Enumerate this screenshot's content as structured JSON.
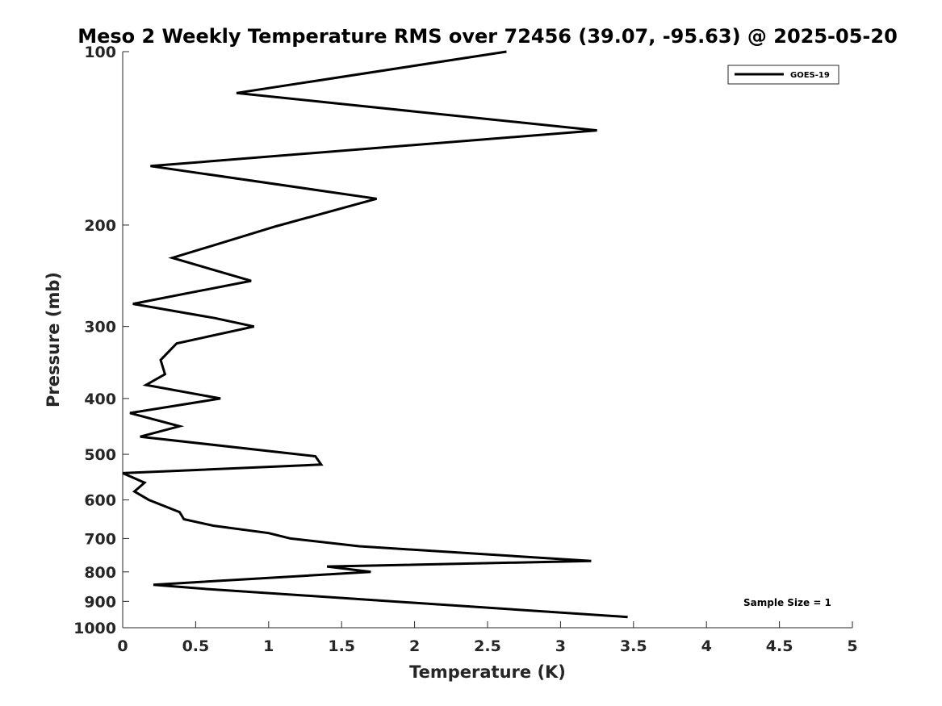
{
  "chart_data": {
    "type": "line",
    "title": "Meso 2 Weekly Temperature RMS over 72456 (39.07, -95.63) @ 2025-05-20",
    "xlabel": "Temperature (K)",
    "ylabel": "Pressure (mb)",
    "xlim": [
      0,
      5
    ],
    "ylim": [
      100,
      1000
    ],
    "y_scale": "log",
    "y_reversed": true,
    "x_ticks": [
      0,
      0.5,
      1,
      1.5,
      2,
      2.5,
      3,
      3.5,
      4,
      4.5,
      5
    ],
    "x_tick_labels": [
      "0",
      "0.5",
      "1",
      "1.5",
      "2",
      "2.5",
      "3",
      "3.5",
      "4",
      "4.5",
      "5"
    ],
    "y_ticks": [
      100,
      200,
      300,
      400,
      500,
      600,
      700,
      800,
      900,
      1000
    ],
    "y_tick_labels": [
      "100",
      "200",
      "300",
      "400",
      "500",
      "600",
      "700",
      "800",
      "900",
      "1000"
    ],
    "grid": false,
    "legend_position": "top-right",
    "annotation": "Sample Size = 1",
    "series": [
      {
        "name": "GOES-19",
        "color": "#000000",
        "points": [
          {
            "t": 2.63,
            "p": 100
          },
          {
            "t": 0.78,
            "p": 118
          },
          {
            "t": 3.25,
            "p": 137
          },
          {
            "t": 0.19,
            "p": 158
          },
          {
            "t": 1.74,
            "p": 180
          },
          {
            "t": 1.05,
            "p": 201
          },
          {
            "t": 0.34,
            "p": 228
          },
          {
            "t": 0.88,
            "p": 250
          },
          {
            "t": 0.07,
            "p": 274
          },
          {
            "t": 0.63,
            "p": 290
          },
          {
            "t": 0.9,
            "p": 300
          },
          {
            "t": 0.37,
            "p": 321
          },
          {
            "t": 0.26,
            "p": 343
          },
          {
            "t": 0.29,
            "p": 363
          },
          {
            "t": 0.16,
            "p": 379
          },
          {
            "t": 0.67,
            "p": 400
          },
          {
            "t": 0.05,
            "p": 424
          },
          {
            "t": 0.39,
            "p": 447
          },
          {
            "t": 0.12,
            "p": 466
          },
          {
            "t": 1.32,
            "p": 504
          },
          {
            "t": 1.36,
            "p": 521
          },
          {
            "t": 0.0,
            "p": 539
          },
          {
            "t": 0.15,
            "p": 560
          },
          {
            "t": 0.08,
            "p": 580
          },
          {
            "t": 0.18,
            "p": 600
          },
          {
            "t": 0.39,
            "p": 630
          },
          {
            "t": 0.42,
            "p": 648
          },
          {
            "t": 0.62,
            "p": 665
          },
          {
            "t": 1.0,
            "p": 685
          },
          {
            "t": 1.15,
            "p": 700
          },
          {
            "t": 1.62,
            "p": 722
          },
          {
            "t": 3.21,
            "p": 766
          },
          {
            "t": 1.4,
            "p": 783
          },
          {
            "t": 1.7,
            "p": 800
          },
          {
            "t": 0.21,
            "p": 842
          },
          {
            "t": 0.56,
            "p": 856
          },
          {
            "t": 3.46,
            "p": 958
          }
        ]
      }
    ]
  }
}
